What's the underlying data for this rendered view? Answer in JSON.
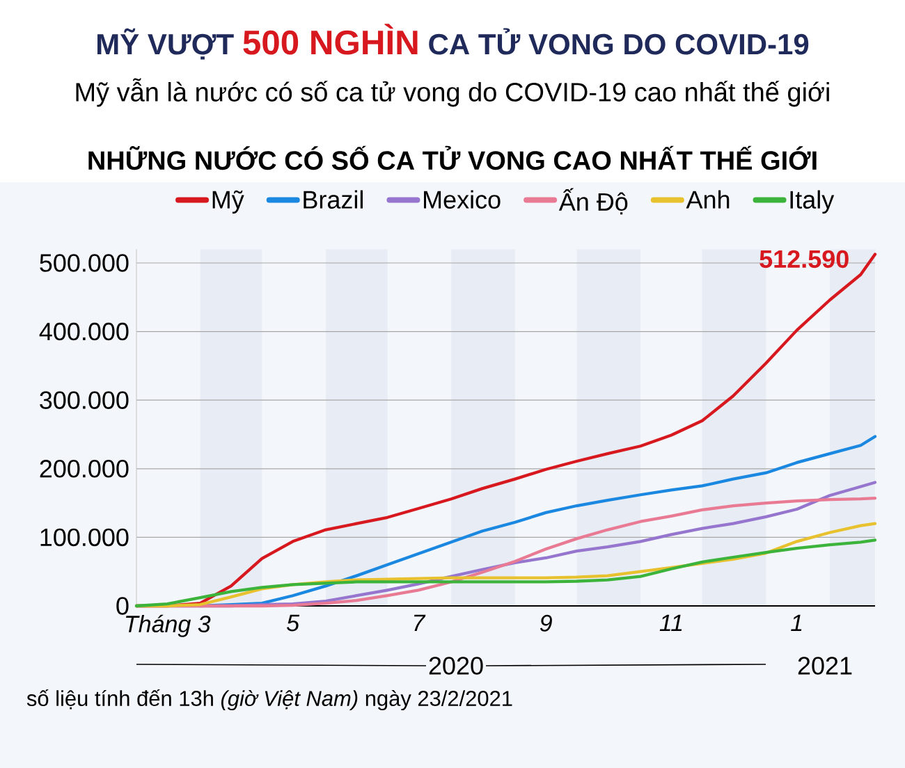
{
  "chart_data": {
    "type": "line",
    "title": "MỸ VƯỢT **500 NGHÌN** CA TỬ VONG DO COVID-19",
    "subtitle": "Mỹ vẫn là nước có số ca tử vong do COVID-19 cao nhất thế giới",
    "annotations": [
      "NHỮNG NƯỚC CÓ SỐ CA TỬ VONG CAO NHẤT THẾ GIỚI",
      "2020",
      "2021",
      "số liệu tính đến 13h *(giờ Việt Nam)* ngày 23/2/2021",
      {
        "text": "512.590",
        "x": "2021-02-23",
        "y": 512590
      }
    ],
    "x": [
      "2020-03-01",
      "2020-03-16",
      "2020-04-01",
      "2020-04-16",
      "2020-05-01",
      "2020-05-16",
      "2020-06-01",
      "2020-06-16",
      "2020-07-01",
      "2020-07-16",
      "2020-08-01",
      "2020-08-16",
      "2020-09-01",
      "2020-09-16",
      "2020-10-01",
      "2020-10-16",
      "2020-11-01",
      "2020-11-16",
      "2020-12-01",
      "2020-12-16",
      "2021-01-01",
      "2021-01-16",
      "2021-02-01",
      "2021-02-16",
      "2021-02-23"
    ],
    "series": [
      {
        "name": "Mỹ",
        "color": "#d7191f",
        "values": [
          0,
          0,
          4000,
          29000,
          69000,
          94000,
          111000,
          120000,
          129000,
          142000,
          156000,
          171000,
          185000,
          199000,
          211000,
          222000,
          233000,
          249000,
          270000,
          306000,
          354000,
          402000,
          446000,
          483000,
          512590
        ]
      },
      {
        "name": "Brazil",
        "color": "#1a87e0",
        "values": [
          null,
          null,
          0,
          2000,
          4000,
          15000,
          29000,
          44000,
          60000,
          76000,
          93000,
          109000,
          122000,
          136000,
          146000,
          154000,
          162000,
          169000,
          175000,
          185000,
          194000,
          209000,
          222000,
          234000,
          247000
        ]
      },
      {
        "name": "Mexico",
        "color": "#9575cd",
        "values": [
          0,
          0,
          0,
          0,
          2000,
          3000,
          7000,
          15000,
          23000,
          32000,
          43000,
          53000,
          63000,
          70000,
          80000,
          86000,
          94000,
          104000,
          113000,
          120000,
          130000,
          141000,
          161000,
          174000,
          180000
        ]
      },
      {
        "name": "Ấn Độ",
        "color": "#e97a94",
        "values": [
          0,
          0,
          0,
          0,
          0,
          1000,
          4000,
          8000,
          15000,
          23000,
          35000,
          49000,
          65000,
          83000,
          98000,
          111000,
          123000,
          131000,
          140000,
          146000,
          150000,
          153000,
          155000,
          156000,
          157000
        ]
      },
      {
        "name": "Anh",
        "color": "#e8c12f",
        "values": [
          0,
          0,
          2000,
          13000,
          25000,
          31000,
          35000,
          38000,
          39000,
          40000,
          41000,
          41000,
          41000,
          41000,
          42000,
          44000,
          50000,
          56000,
          62000,
          68000,
          77000,
          94000,
          107000,
          117000,
          120000
        ]
      },
      {
        "name": "Italy",
        "color": "#3cb43c",
        "values": [
          0,
          3000,
          12000,
          21000,
          27000,
          31000,
          33000,
          35000,
          35000,
          35000,
          35000,
          35000,
          35000,
          35000,
          36000,
          38000,
          43000,
          54000,
          64000,
          71000,
          78000,
          84000,
          89000,
          93000,
          96000
        ]
      }
    ],
    "xlim": [
      "2020-03-01",
      "2021-02-23"
    ],
    "xticks": [
      {
        "value": "2020-03-16",
        "label": "Tháng 3"
      },
      {
        "value": "2020-05-16",
        "label": "5"
      },
      {
        "value": "2020-07-16",
        "label": "7"
      },
      {
        "value": "2020-09-16",
        "label": "9"
      },
      {
        "value": "2020-11-16",
        "label": "11"
      },
      {
        "value": "2021-01-16",
        "label": "1"
      }
    ],
    "ylim": [
      0,
      520000
    ],
    "yticks": [
      0,
      {
        "value": 100000,
        "label": "100.000"
      },
      {
        "value": 200000,
        "label": "200.000"
      },
      {
        "value": 300000,
        "label": "300.000"
      },
      {
        "value": 400000,
        "label": "400.000"
      },
      {
        "value": 500000,
        "label": "500.000"
      }
    ],
    "bands": [
      {
        "axis": "x",
        "from": "2020-04-01",
        "to": "2020-05-01",
        "color": "#e8edf5"
      },
      {
        "axis": "x",
        "from": "2020-06-01",
        "to": "2020-07-01",
        "color": "#e8edf5"
      },
      {
        "axis": "x",
        "from": "2020-08-01",
        "to": "2020-09-01",
        "color": "#e8edf5"
      },
      {
        "axis": "x",
        "from": "2020-10-01",
        "to": "2020-11-01",
        "color": "#e8edf5"
      },
      {
        "axis": "x",
        "from": "2020-12-01",
        "to": "2021-01-01",
        "color": "#e8edf5"
      },
      {
        "axis": "x",
        "from": "2021-02-01",
        "to": "2021-02-23",
        "color": "#e8edf5"
      }
    ],
    "grid": "y",
    "legend": "top",
    "line_style": "solid"
  }
}
